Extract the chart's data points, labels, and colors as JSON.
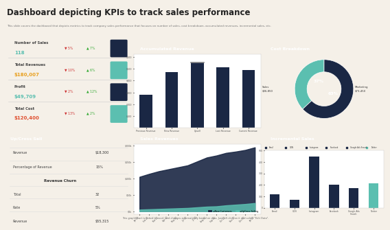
{
  "title": "Dashboard depicting KPIs to track sales performance",
  "subtitle": "This slide covers the dashboard that depicts metrics to track company sales performance that focuses on number of sales, cost breakdown, accumulated revenues, incremental sales, etc.",
  "bg_color": "#f5f0e8",
  "panel_bg": "#ffffff",
  "dark_navy": "#1a2744",
  "teal": "#5bbfb0",
  "kpi_labels": [
    "Number of Sales",
    "Total Revenues",
    "Profit",
    "Total Cost"
  ],
  "kpi_values": [
    "118",
    "$180,007",
    "$49,709",
    "$120,400"
  ],
  "kpi_value_colors": [
    "#5bbfb0",
    "#e8a020",
    "#5bbfb0",
    "#e05030"
  ],
  "kpi_down1": [
    "5%",
    "10%",
    "2%",
    "13%"
  ],
  "kpi_up1": [
    "7%",
    "6%",
    "12%",
    "2%"
  ],
  "kpi_icon_colors": [
    "#1a2744",
    "#5bbfb0",
    "#1a2744",
    "#5bbfb0"
  ],
  "acc_rev_title": "Accumulated Revenue",
  "acc_rev_categories": [
    "Previous Revenue",
    "New Revenue",
    "Upsell",
    "Last Revenue",
    "Current Revenue"
  ],
  "acc_rev_values": [
    280,
    470,
    550,
    510,
    490
  ],
  "acc_rev_bar_color": "#1a2744",
  "cost_title": "Cost Breakdown",
  "cost_sales_pct": 37,
  "cost_marketing_pct": 63,
  "cost_sales_val": "$36,850",
  "cost_marketing_val": "$73,450",
  "cost_colors": [
    "#5bbfb0",
    "#1a2744"
  ],
  "upcross_title": "Up/Cross Sell",
  "upcross_revenue": "$18,300",
  "upcross_pct": "15%",
  "revenue_churn_total": "32",
  "revenue_churn_rate": "5%",
  "revenue_churn_revenue": "$55,315",
  "sales_rev_title": "Sales Revenues",
  "sales_rev_new_customers": [
    100,
    108,
    115,
    120,
    125,
    130,
    140,
    150,
    155,
    160,
    162,
    165,
    170
  ],
  "sales_rev_upcross": [
    5,
    6,
    7,
    8,
    9,
    10,
    12,
    14,
    15,
    18,
    20,
    22,
    25
  ],
  "sales_rev_months": [
    "Jan 22",
    "Feb 22",
    "Mar 22",
    "Apr 22",
    "May 22",
    "Jun 22",
    "Jul 22",
    "Aug 22",
    "Sep 22",
    "Oct 22",
    "Nov 22",
    "Dec 22",
    "Jan 23"
  ],
  "incremental_title": "Incremental Sales",
  "inc_categories": [
    "Email",
    "GDN",
    "Instagram",
    "Facebook",
    "Google Ads\nSearch",
    "Twitter"
  ],
  "inc_values": [
    120,
    70,
    450,
    200,
    175,
    215
  ],
  "inc_colors": [
    "#1a2744",
    "#1a2744",
    "#1a2744",
    "#1a2744",
    "#1a2744",
    "#5bbfb0"
  ],
  "inc_legend": [
    "Email",
    "GDN",
    "Instagram",
    "Facebook",
    "Google Ads Search",
    "Twitter"
  ],
  "inc_legend_colors": [
    "#1a2744",
    "#1a2744",
    "#1a2744",
    "#1a2744",
    "#1a2744",
    "#5bbfb0"
  ]
}
